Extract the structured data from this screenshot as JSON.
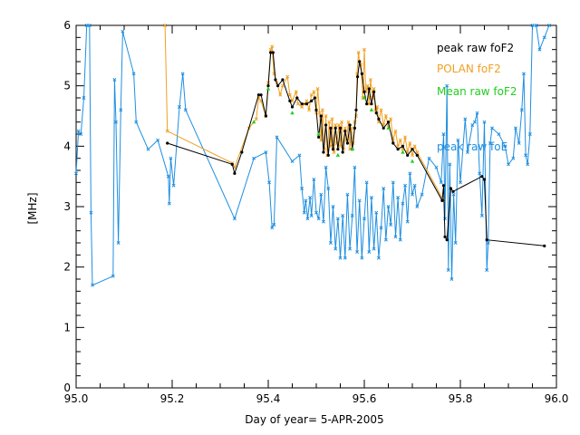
{
  "chart_data": {
    "type": "line",
    "xlabel": "Day of year= 5-APR-2005",
    "ylabel": "[MHz]",
    "xlim": [
      95.0,
      96.0
    ],
    "ylim": [
      0,
      6
    ],
    "x_ticks": [
      {
        "value": 95.0,
        "label": "95.0"
      },
      {
        "value": 95.2,
        "label": "95.2"
      },
      {
        "value": 95.4,
        "label": "95.4"
      },
      {
        "value": 95.6,
        "label": "95.6"
      },
      {
        "value": 95.8,
        "label": "95.8"
      },
      {
        "value": 96.0,
        "label": "96.0"
      }
    ],
    "y_ticks": [
      {
        "value": 0,
        "label": "0"
      },
      {
        "value": 1,
        "label": "1"
      },
      {
        "value": 2,
        "label": "2"
      },
      {
        "value": 3,
        "label": "3"
      },
      {
        "value": 4,
        "label": "4"
      },
      {
        "value": 5,
        "label": "5"
      },
      {
        "value": 6,
        "label": "6"
      }
    ],
    "legend_placement": "top-right",
    "series": [
      {
        "name": "peak raw foE",
        "color": "#1f8fe0",
        "marker": "x",
        "points": [
          [
            95.0,
            3.55
          ],
          [
            95.005,
            4.25
          ],
          [
            95.01,
            4.2
          ],
          [
            95.016,
            4.8
          ],
          [
            95.022,
            6.0
          ],
          [
            95.028,
            6.0
          ],
          [
            95.031,
            2.9
          ],
          [
            95.034,
            1.7
          ],
          [
            95.077,
            1.85
          ],
          [
            95.08,
            5.1
          ],
          [
            95.083,
            4.4
          ],
          [
            95.088,
            2.4
          ],
          [
            95.093,
            4.6
          ],
          [
            95.097,
            5.9
          ],
          [
            95.12,
            5.2
          ],
          [
            95.125,
            4.4
          ],
          [
            95.15,
            3.95
          ],
          [
            95.17,
            4.1
          ],
          [
            95.192,
            3.5
          ],
          [
            95.194,
            3.05
          ],
          [
            95.197,
            3.8
          ],
          [
            95.203,
            3.35
          ],
          [
            95.215,
            4.65
          ],
          [
            95.222,
            5.2
          ],
          [
            95.228,
            4.6
          ],
          [
            95.33,
            2.8
          ],
          [
            95.37,
            3.8
          ],
          [
            95.395,
            3.9
          ],
          [
            95.402,
            3.4
          ],
          [
            95.408,
            2.65
          ],
          [
            95.412,
            2.7
          ],
          [
            95.418,
            4.15
          ],
          [
            95.45,
            3.75
          ],
          [
            95.465,
            3.85
          ],
          [
            95.47,
            3.3
          ],
          [
            95.475,
            2.9
          ],
          [
            95.478,
            3.1
          ],
          [
            95.482,
            2.8
          ],
          [
            95.487,
            3.15
          ],
          [
            95.49,
            2.85
          ],
          [
            95.495,
            3.45
          ],
          [
            95.5,
            2.9
          ],
          [
            95.505,
            2.8
          ],
          [
            95.51,
            3.2
          ],
          [
            95.515,
            2.75
          ],
          [
            95.52,
            3.65
          ],
          [
            95.525,
            3.3
          ],
          [
            95.53,
            2.4
          ],
          [
            95.535,
            3.0
          ],
          [
            95.54,
            2.3
          ],
          [
            95.545,
            2.8
          ],
          [
            95.55,
            2.15
          ],
          [
            95.555,
            2.85
          ],
          [
            95.56,
            2.15
          ],
          [
            95.565,
            3.2
          ],
          [
            95.57,
            2.3
          ],
          [
            95.575,
            2.85
          ],
          [
            95.58,
            3.65
          ],
          [
            95.585,
            2.25
          ],
          [
            95.59,
            3.1
          ],
          [
            95.595,
            2.15
          ],
          [
            95.6,
            2.8
          ],
          [
            95.605,
            3.4
          ],
          [
            95.61,
            2.25
          ],
          [
            95.615,
            3.15
          ],
          [
            95.62,
            2.3
          ],
          [
            95.625,
            2.9
          ],
          [
            95.63,
            2.15
          ],
          [
            95.635,
            2.65
          ],
          [
            95.64,
            3.3
          ],
          [
            95.645,
            2.45
          ],
          [
            95.65,
            3.0
          ],
          [
            95.655,
            2.7
          ],
          [
            95.66,
            3.4
          ],
          [
            95.665,
            2.5
          ],
          [
            95.67,
            3.15
          ],
          [
            95.675,
            2.45
          ],
          [
            95.68,
            3.05
          ],
          [
            95.685,
            3.35
          ],
          [
            95.69,
            2.75
          ],
          [
            95.695,
            3.55
          ],
          [
            95.7,
            3.2
          ],
          [
            95.705,
            3.35
          ],
          [
            95.71,
            3.0
          ],
          [
            95.72,
            3.2
          ],
          [
            95.735,
            3.8
          ],
          [
            95.75,
            3.65
          ],
          [
            95.76,
            3.4
          ],
          [
            95.765,
            4.2
          ],
          [
            95.768,
            2.8
          ],
          [
            95.772,
            5.0
          ],
          [
            95.775,
            1.95
          ],
          [
            95.778,
            3.7
          ],
          [
            95.782,
            1.8
          ],
          [
            95.786,
            3.2
          ],
          [
            95.79,
            2.4
          ],
          [
            95.795,
            4.1
          ],
          [
            95.8,
            3.4
          ],
          [
            95.81,
            4.45
          ],
          [
            95.815,
            3.9
          ],
          [
            95.825,
            4.35
          ],
          [
            95.83,
            4.4
          ],
          [
            95.835,
            4.55
          ],
          [
            95.84,
            3.55
          ],
          [
            95.845,
            2.85
          ],
          [
            95.85,
            4.4
          ],
          [
            95.855,
            1.95
          ],
          [
            95.858,
            2.4
          ],
          [
            95.862,
            4.05
          ],
          [
            95.866,
            4.3
          ],
          [
            95.88,
            4.2
          ],
          [
            95.893,
            4.0
          ],
          [
            95.9,
            3.7
          ],
          [
            95.91,
            3.8
          ],
          [
            95.915,
            4.3
          ],
          [
            95.922,
            4.05
          ],
          [
            95.928,
            4.6
          ],
          [
            95.932,
            5.2
          ],
          [
            95.936,
            3.85
          ],
          [
            95.94,
            3.7
          ],
          [
            95.945,
            4.2
          ],
          [
            95.95,
            6.0
          ],
          [
            95.958,
            6.0
          ],
          [
            95.965,
            5.6
          ],
          [
            95.975,
            5.8
          ],
          [
            95.985,
            6.0
          ]
        ]
      },
      {
        "name": "POLAN foF2",
        "color": "#f0a020",
        "marker": "x",
        "points": [
          [
            95.185,
            6.0
          ],
          [
            95.19,
            4.25
          ],
          [
            95.325,
            3.72
          ],
          [
            95.33,
            3.65
          ],
          [
            95.36,
            4.3
          ],
          [
            95.375,
            4.45
          ],
          [
            95.38,
            4.8
          ],
          [
            95.385,
            4.75
          ],
          [
            95.395,
            4.5
          ],
          [
            95.4,
            5.05
          ],
          [
            95.405,
            5.6
          ],
          [
            95.408,
            5.65
          ],
          [
            95.412,
            5.2
          ],
          [
            95.418,
            5.05
          ],
          [
            95.425,
            4.85
          ],
          [
            95.43,
            5.0
          ],
          [
            95.44,
            5.15
          ],
          [
            95.445,
            4.85
          ],
          [
            95.45,
            4.75
          ],
          [
            95.458,
            4.9
          ],
          [
            95.462,
            4.7
          ],
          [
            95.47,
            4.65
          ],
          [
            95.475,
            4.7
          ],
          [
            95.48,
            4.75
          ],
          [
            95.485,
            4.6
          ],
          [
            95.49,
            4.85
          ],
          [
            95.495,
            4.9
          ],
          [
            95.5,
            4.55
          ],
          [
            95.503,
            4.95
          ],
          [
            95.507,
            4.55
          ],
          [
            95.51,
            4.1
          ],
          [
            95.513,
            4.6
          ],
          [
            95.517,
            3.95
          ],
          [
            95.52,
            4.5
          ],
          [
            95.523,
            3.85
          ],
          [
            95.527,
            4.4
          ],
          [
            95.53,
            4.0
          ],
          [
            95.533,
            4.45
          ],
          [
            95.537,
            3.9
          ],
          [
            95.54,
            4.35
          ],
          [
            95.543,
            4.05
          ],
          [
            95.547,
            4.35
          ],
          [
            95.55,
            4.0
          ],
          [
            95.553,
            4.4
          ],
          [
            95.557,
            3.95
          ],
          [
            95.56,
            4.3
          ],
          [
            95.563,
            4.1
          ],
          [
            95.567,
            4.4
          ],
          [
            95.57,
            3.95
          ],
          [
            95.573,
            4.3
          ],
          [
            95.577,
            4.05
          ],
          [
            95.58,
            4.4
          ],
          [
            95.583,
            4.5
          ],
          [
            95.585,
            5.2
          ],
          [
            95.588,
            5.55
          ],
          [
            95.59,
            5.4
          ],
          [
            95.593,
            5.35
          ],
          [
            95.597,
            4.8
          ],
          [
            95.6,
            5.6
          ],
          [
            95.603,
            4.9
          ],
          [
            95.607,
            5.0
          ],
          [
            95.61,
            4.7
          ],
          [
            95.613,
            5.1
          ],
          [
            95.617,
            4.8
          ],
          [
            95.62,
            4.95
          ],
          [
            95.623,
            4.6
          ],
          [
            95.627,
            4.65
          ],
          [
            95.63,
            4.4
          ],
          [
            95.635,
            4.6
          ],
          [
            95.64,
            4.35
          ],
          [
            95.645,
            4.5
          ],
          [
            95.65,
            4.35
          ],
          [
            95.655,
            4.45
          ],
          [
            95.66,
            4.1
          ],
          [
            95.665,
            4.25
          ],
          [
            95.67,
            4.0
          ],
          [
            95.675,
            4.1
          ],
          [
            95.68,
            3.95
          ],
          [
            95.685,
            4.15
          ],
          [
            95.69,
            3.9
          ],
          [
            95.695,
            4.05
          ],
          [
            95.7,
            3.85
          ],
          [
            95.705,
            4.0
          ],
          [
            95.71,
            3.9
          ],
          [
            95.765,
            3.1
          ]
        ]
      },
      {
        "name": "peak raw foF2",
        "color": "#000000",
        "marker": "dot",
        "points": [
          [
            95.19,
            4.05
          ],
          [
            95.325,
            3.7
          ],
          [
            95.33,
            3.55
          ],
          [
            95.345,
            3.9
          ],
          [
            95.38,
            4.85
          ],
          [
            95.385,
            4.85
          ],
          [
            95.395,
            4.5
          ],
          [
            95.4,
            5.0
          ],
          [
            95.405,
            5.55
          ],
          [
            95.41,
            5.55
          ],
          [
            95.415,
            5.1
          ],
          [
            95.42,
            5.0
          ],
          [
            95.43,
            5.1
          ],
          [
            95.445,
            4.75
          ],
          [
            95.45,
            4.65
          ],
          [
            95.46,
            4.8
          ],
          [
            95.47,
            4.7
          ],
          [
            95.48,
            4.7
          ],
          [
            95.49,
            4.75
          ],
          [
            95.497,
            4.8
          ],
          [
            95.5,
            4.6
          ],
          [
            95.505,
            4.15
          ],
          [
            95.51,
            4.5
          ],
          [
            95.515,
            3.9
          ],
          [
            95.52,
            4.35
          ],
          [
            95.525,
            3.85
          ],
          [
            95.53,
            4.3
          ],
          [
            95.535,
            3.95
          ],
          [
            95.54,
            4.3
          ],
          [
            95.545,
            3.95
          ],
          [
            95.55,
            4.3
          ],
          [
            95.555,
            3.9
          ],
          [
            95.56,
            4.25
          ],
          [
            95.565,
            4.05
          ],
          [
            95.57,
            4.35
          ],
          [
            95.575,
            3.95
          ],
          [
            95.58,
            4.3
          ],
          [
            95.583,
            4.6
          ],
          [
            95.586,
            5.15
          ],
          [
            95.59,
            5.4
          ],
          [
            95.595,
            5.2
          ],
          [
            95.6,
            4.9
          ],
          [
            95.605,
            4.7
          ],
          [
            95.61,
            4.95
          ],
          [
            95.615,
            4.7
          ],
          [
            95.62,
            4.9
          ],
          [
            95.625,
            4.55
          ],
          [
            95.63,
            4.45
          ],
          [
            95.64,
            4.3
          ],
          [
            95.65,
            4.4
          ],
          [
            95.66,
            4.05
          ],
          [
            95.67,
            3.95
          ],
          [
            95.68,
            4.0
          ],
          [
            95.69,
            3.85
          ],
          [
            95.7,
            3.95
          ],
          [
            95.71,
            3.85
          ],
          [
            95.762,
            3.1
          ],
          [
            95.765,
            3.35
          ],
          [
            95.768,
            2.5
          ],
          [
            95.772,
            2.45
          ],
          [
            95.78,
            3.3
          ],
          [
            95.785,
            3.25
          ],
          [
            95.845,
            3.5
          ],
          [
            95.85,
            3.45
          ],
          [
            95.855,
            2.45
          ],
          [
            95.975,
            2.35
          ]
        ]
      },
      {
        "name": "Mean raw foF2",
        "color": "#22cc22",
        "marker": "triangle",
        "points": [
          [
            95.37,
            4.4
          ],
          [
            95.4,
            4.95
          ],
          [
            95.45,
            4.55
          ],
          [
            95.505,
            4.2
          ],
          [
            95.545,
            3.85
          ],
          [
            95.575,
            3.95
          ],
          [
            95.6,
            4.8
          ],
          [
            95.615,
            4.6
          ],
          [
            95.65,
            4.3
          ],
          [
            95.68,
            3.9
          ],
          [
            95.7,
            3.75
          ]
        ]
      }
    ]
  }
}
